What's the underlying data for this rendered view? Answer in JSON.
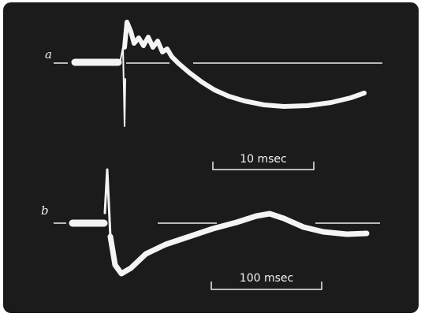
{
  "traces": [
    {
      "label": "a",
      "scale": "10 msec"
    },
    {
      "label": "b",
      "scale": "100 msec"
    }
  ]
}
